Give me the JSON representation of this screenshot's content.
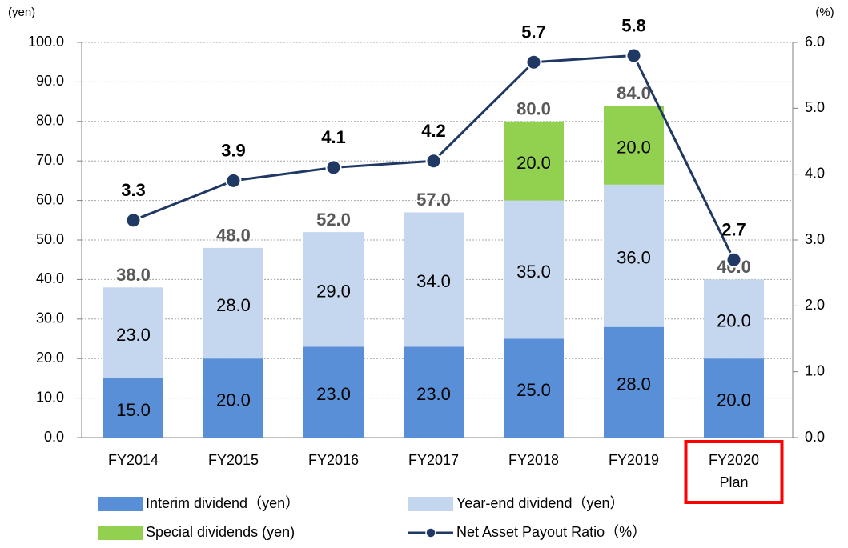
{
  "chart_data": {
    "type": "stacked_bar_line",
    "y_unit": "(yen)",
    "y2_unit": "(%)",
    "categories": [
      "FY2014",
      "FY2015",
      "FY2016",
      "FY2017",
      "FY2018",
      "FY2019",
      "FY2020\nPlan"
    ],
    "highlight_index": 6,
    "series": [
      {
        "name": "Interim dividend（yen）",
        "color": "#588fd6",
        "kind": "bar",
        "values": [
          15,
          20,
          23,
          23,
          25,
          28,
          20
        ],
        "value_labels": [
          "15.0",
          "20.0",
          "23.0",
          "23.0",
          "25.0",
          "28.0",
          "20.0"
        ]
      },
      {
        "name": "Year-end dividend（yen）",
        "color": "#c5d7ef",
        "kind": "bar",
        "values": [
          23,
          28,
          29,
          34,
          35,
          36,
          20
        ],
        "value_labels": [
          "23.0",
          "28.0",
          "29.0",
          "34.0",
          "35.0",
          "36.0",
          "20.0"
        ]
      },
      {
        "name": "Special dividends (yen)",
        "color": "#92d050",
        "kind": "bar",
        "values": [
          null,
          null,
          null,
          null,
          20,
          20,
          null
        ],
        "value_labels": [
          null,
          null,
          null,
          null,
          "20.0",
          "20.0",
          null
        ]
      },
      {
        "name": "Net Asset Payout Ratio（%）",
        "color": "#1f3864",
        "kind": "line",
        "axis": "y2",
        "values": [
          3.3,
          3.9,
          4.1,
          4.2,
          5.7,
          5.8,
          2.7
        ]
      }
    ],
    "totals": [
      38,
      48,
      52,
      57,
      80,
      84,
      40
    ],
    "totals_labels": [
      "38.0",
      "48.0",
      "52.0",
      "57.0",
      "80.0",
      "84.0",
      "40.0"
    ],
    "totals_color": "#595959",
    "ylim": [
      0,
      100
    ],
    "yticks": [
      {
        "value": 0,
        "label": "0.0"
      },
      {
        "value": 10,
        "label": "10.0"
      },
      {
        "value": 20,
        "label": "20.0"
      },
      {
        "value": 30,
        "label": "30.0"
      },
      {
        "value": 40,
        "label": "40.0"
      },
      {
        "value": 50,
        "label": "50.0"
      },
      {
        "value": 60,
        "label": "60.0"
      },
      {
        "value": 70,
        "label": "70.0"
      },
      {
        "value": 80,
        "label": "80.0"
      },
      {
        "value": 90,
        "label": "90.0"
      },
      {
        "value": 100,
        "label": "100.0"
      }
    ],
    "y2lim": [
      0,
      6
    ],
    "y2ticks": [
      {
        "value": 0,
        "label": "0.0"
      },
      {
        "value": 1,
        "label": "1.0"
      },
      {
        "value": 2,
        "label": "2.0"
      },
      {
        "value": 3,
        "label": "3.0"
      },
      {
        "value": 4,
        "label": "4.0"
      },
      {
        "value": 5,
        "label": "5.0"
      },
      {
        "value": 6,
        "label": "6.0"
      }
    ],
    "grid": true
  }
}
